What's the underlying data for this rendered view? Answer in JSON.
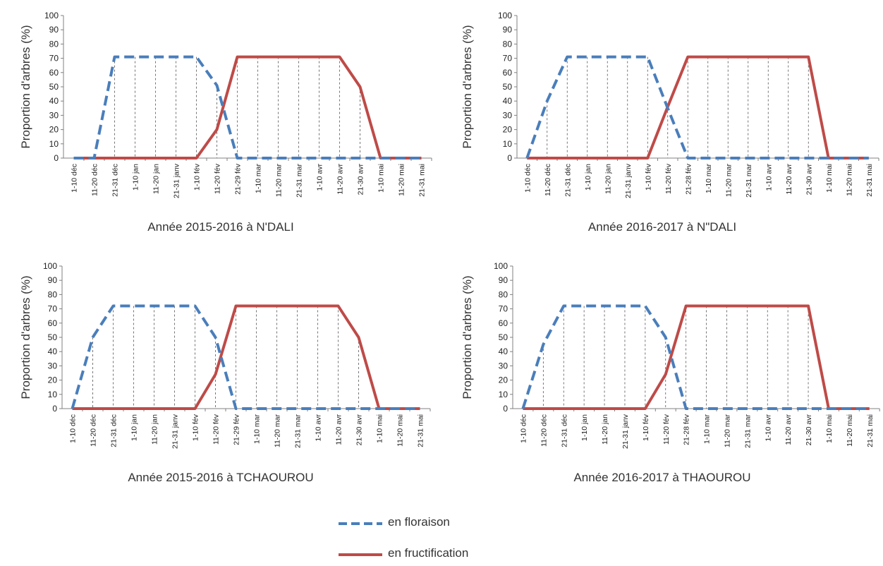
{
  "chart_data": [
    {
      "type": "line",
      "title": "Année 2015-2016 à N'DALI",
      "ylabel": "Proportion d'arbres (%)",
      "ylim": [
        0,
        100
      ],
      "yticks": [
        0,
        10,
        20,
        30,
        40,
        50,
        60,
        70,
        80,
        90,
        100
      ],
      "categories": [
        "1-10 déc",
        "11-20 déc",
        "21-31 déc",
        "1-10 jan",
        "11-20 jan",
        "21-31 janv",
        "1-10 fév",
        "11-20 fév",
        "21-29 fév",
        "1-10 mar",
        "11-20 mar",
        "21-31 mar",
        "1-10 avr",
        "11-20 avr",
        "21-30 avr",
        "1-10 mai",
        "11-20 mai",
        "21-31 mai"
      ],
      "series": [
        {
          "name": "en floraison",
          "values": [
            0,
            0,
            71,
            71,
            71,
            71,
            71,
            51,
            0,
            0,
            0,
            0,
            0,
            0,
            0,
            0,
            0,
            0
          ]
        },
        {
          "name": "en fructification",
          "values": [
            0,
            0,
            0,
            0,
            0,
            0,
            0,
            20,
            71,
            71,
            71,
            71,
            71,
            71,
            50,
            0,
            0,
            0
          ]
        }
      ]
    },
    {
      "type": "line",
      "title": "Année 2016-2017 à N\"DALI",
      "ylabel": "Proportion d'arbres (%)",
      "ylim": [
        0,
        100
      ],
      "yticks": [
        0,
        10,
        20,
        30,
        40,
        50,
        60,
        70,
        80,
        90,
        100
      ],
      "categories": [
        "1-10 déc",
        "11-20 déc",
        "21-31 déc",
        "1-10 jan",
        "11-20 jan",
        "21-31 janv",
        "1-10 fév",
        "11-20 fév",
        "21-28 fév",
        "1-10 mar",
        "11-20 mar",
        "21-31 mar",
        "1-10 avr",
        "11-20 avr",
        "21-30 avr",
        "1-10 mai",
        "11-20 mai",
        "21-31 mai"
      ],
      "series": [
        {
          "name": "en floraison",
          "values": [
            0,
            40,
            71,
            71,
            71,
            71,
            71,
            35,
            0,
            0,
            0,
            0,
            0,
            0,
            0,
            0,
            0,
            0
          ]
        },
        {
          "name": "en fructification",
          "values": [
            0,
            0,
            0,
            0,
            0,
            0,
            0,
            36,
            71,
            71,
            71,
            71,
            71,
            71,
            71,
            0,
            0,
            0
          ]
        }
      ]
    },
    {
      "type": "line",
      "title": "Année 2015-2016 à TCHAOUROU",
      "ylabel": "Proportion d'arbres (%)",
      "ylim": [
        0,
        100
      ],
      "yticks": [
        0,
        10,
        20,
        30,
        40,
        50,
        60,
        70,
        80,
        90,
        100
      ],
      "categories": [
        "1-10 déc",
        "11-20 déc",
        "21-31 déc",
        "1-10 jan",
        "11-20 jan",
        "21-31 janv",
        "1-10 fév",
        "11-20 fév",
        "21-29 fév",
        "1-10 mar",
        "11-20 mar",
        "21-31 mar",
        "1-10 avr",
        "11-20 avr",
        "21-30 avr",
        "1-10 mai",
        "11-20 mai",
        "21-31 mai"
      ],
      "series": [
        {
          "name": "en floraison",
          "values": [
            0,
            50,
            72,
            72,
            72,
            72,
            72,
            50,
            0,
            0,
            0,
            0,
            0,
            0,
            0,
            0,
            0,
            0
          ]
        },
        {
          "name": "en fructification",
          "values": [
            0,
            0,
            0,
            0,
            0,
            0,
            0,
            24,
            72,
            72,
            72,
            72,
            72,
            72,
            50,
            0,
            0,
            0
          ]
        }
      ]
    },
    {
      "type": "line",
      "title": "Année 2016-2017 à THAOUROU",
      "ylabel": "Proportion d'arbres (%)",
      "ylim": [
        0,
        100
      ],
      "yticks": [
        0,
        10,
        20,
        30,
        40,
        50,
        60,
        70,
        80,
        90,
        100
      ],
      "categories": [
        "1-10 déc",
        "11-20 déc",
        "21-31 déc",
        "1-10 jan",
        "11-20 jan",
        "21-31 janv",
        "1-10 fév",
        "11-20 fév",
        "21-28 fév",
        "1-10 mar",
        "11-20 mar",
        "21-31 mar",
        "1-10 avr",
        "11-20 avr",
        "21-30 avr",
        "1-10 mai",
        "11-20 mai",
        "21-31 mai"
      ],
      "series": [
        {
          "name": "en floraison",
          "values": [
            0,
            45,
            72,
            72,
            72,
            72,
            72,
            50,
            0,
            0,
            0,
            0,
            0,
            0,
            0,
            0,
            0,
            0
          ]
        },
        {
          "name": "en fructification",
          "values": [
            0,
            0,
            0,
            0,
            0,
            0,
            0,
            24,
            72,
            72,
            72,
            72,
            72,
            72,
            72,
            0,
            0,
            0
          ]
        }
      ]
    }
  ],
  "legend": [
    {
      "label": "en floraison",
      "color": "#4a7ebb",
      "style": "dashed"
    },
    {
      "label": "en fructification",
      "color": "#be4b48",
      "style": "solid"
    }
  ],
  "colors": {
    "floraison": "#4a7ebb",
    "fructification": "#be4b48",
    "axis": "#808080"
  }
}
